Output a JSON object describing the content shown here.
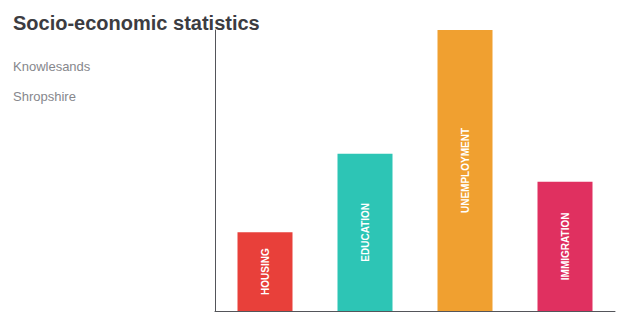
{
  "chart_data": {
    "type": "bar",
    "title": "Socio-economic statistics",
    "subtitle": [
      "Knowlesands",
      "Shropshire"
    ],
    "categories": [
      "HOUSING",
      "EDUCATION",
      "UNEMPLOYMENT",
      "IMMIGRATION"
    ],
    "values": [
      0.28,
      0.56,
      1.0,
      0.46
    ],
    "colors": [
      "#E8403A",
      "#2DC5B5",
      "#F0A030",
      "#E03060"
    ],
    "ylim": [
      0,
      1
    ],
    "grid": false,
    "tick_labels": false
  }
}
